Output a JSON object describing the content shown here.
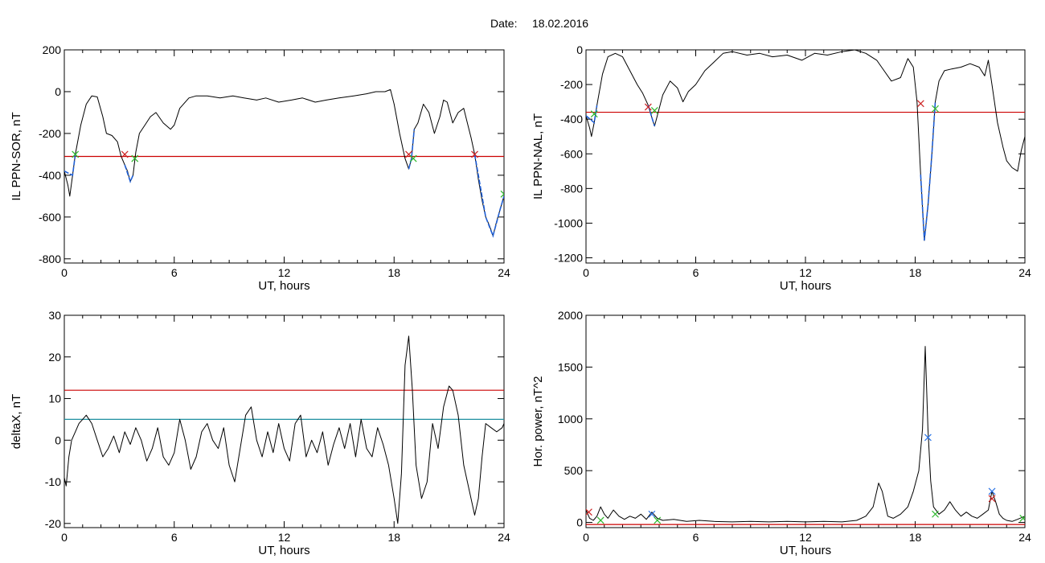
{
  "figure": {
    "date_label": "Date:",
    "date_value": "18.02.2016"
  },
  "colors": {
    "threshold_red": "#cc0000",
    "threshold_cyan": "#1e8fa0",
    "event_segment_blue": "#1f5fd6",
    "start_marker_red": "#cc2222",
    "end_marker_green": "#2bb82b",
    "peak_marker_blue": "#2a73e6"
  },
  "chart_data": [
    {
      "id": "il-sor",
      "type": "line",
      "xlabel": "UT, hours",
      "ylabel": "IL PPN-SOR, nT",
      "xlim": [
        0,
        24
      ],
      "ylim": [
        -820,
        200
      ],
      "xticks": [
        0,
        6,
        12,
        18,
        24
      ],
      "yticks": [
        200,
        0,
        -200,
        -400,
        -600,
        -800
      ],
      "grid": false,
      "threshold_lines": [
        {
          "y": -310,
          "color": "#cc0000"
        }
      ],
      "series": [
        {
          "x": [
            0,
            0.2,
            0.3,
            0.45,
            0.6,
            0.9,
            1.2,
            1.5,
            1.8,
            2.1,
            2.3,
            2.6,
            2.9,
            3.1,
            3.3,
            3.45,
            3.6,
            3.75,
            3.9,
            4.1,
            4.4,
            4.7,
            5.0,
            5.4,
            5.8,
            6.0,
            6.3,
            6.8,
            7.2,
            7.8,
            8.5,
            9.2,
            9.8,
            10.5,
            11.0,
            11.7,
            12.4,
            13.0,
            13.7,
            14.3,
            15.0,
            15.8,
            16.5,
            17.0,
            17.5,
            17.8,
            18.0,
            18.3,
            18.6,
            18.8,
            18.95,
            19.1,
            19.3,
            19.6,
            19.9,
            20.2,
            20.5,
            20.7,
            20.9,
            21.2,
            21.5,
            21.8,
            22.0,
            22.2,
            22.4,
            22.6,
            22.8,
            23.0,
            23.2,
            23.4,
            23.6,
            23.8,
            24.0
          ],
          "y": [
            -380,
            -450,
            -500,
            -400,
            -300,
            -160,
            -60,
            -20,
            -25,
            -120,
            -200,
            -210,
            -240,
            -310,
            -350,
            -380,
            -430,
            -400,
            -290,
            -200,
            -160,
            -120,
            -100,
            -150,
            -180,
            -160,
            -80,
            -30,
            -20,
            -20,
            -30,
            -20,
            -30,
            -40,
            -30,
            -50,
            -40,
            -30,
            -50,
            -40,
            -30,
            -20,
            -10,
            0,
            0,
            10,
            -60,
            -200,
            -320,
            -370,
            -320,
            -180,
            -150,
            -60,
            -100,
            -200,
            -120,
            -40,
            -50,
            -150,
            -100,
            -80,
            -150,
            -220,
            -300,
            -420,
            -520,
            -600,
            -640,
            -690,
            -620,
            -560,
            -500
          ]
        }
      ],
      "event_segments": [
        {
          "x": [
            0,
            0.45,
            0.6
          ]
        },
        {
          "x": [
            3.3,
            3.6,
            3.75
          ]
        },
        {
          "x": [
            18.8,
            18.95,
            19.1
          ]
        },
        {
          "x": [
            22.4,
            23.0,
            23.4,
            23.8,
            24.0
          ]
        }
      ],
      "markers": [
        {
          "x": 0.6,
          "y": -300,
          "kind": "end"
        },
        {
          "x": 3.3,
          "y": -300,
          "kind": "start"
        },
        {
          "x": 3.85,
          "y": -320,
          "kind": "end"
        },
        {
          "x": 18.8,
          "y": -300,
          "kind": "start"
        },
        {
          "x": 19.05,
          "y": -320,
          "kind": "end"
        },
        {
          "x": 22.4,
          "y": -300,
          "kind": "start"
        },
        {
          "x": 24.0,
          "y": -490,
          "kind": "end"
        }
      ]
    },
    {
      "id": "il-nal",
      "type": "line",
      "xlabel": "UT, hours",
      "ylabel": "IL PPN-NAL, nT",
      "xlim": [
        0,
        24
      ],
      "ylim": [
        -1230,
        0
      ],
      "xticks": [
        0,
        6,
        12,
        18,
        24
      ],
      "yticks": [
        0,
        -200,
        -400,
        -600,
        -800,
        -1000,
        -1200
      ],
      "grid": false,
      "threshold_lines": [
        {
          "y": -360,
          "color": "#cc0000"
        }
      ],
      "series": [
        {
          "x": [
            0,
            0.2,
            0.3,
            0.45,
            0.6,
            0.9,
            1.2,
            1.6,
            2.0,
            2.4,
            2.8,
            3.1,
            3.4,
            3.6,
            3.75,
            3.9,
            4.2,
            4.6,
            5.0,
            5.3,
            5.6,
            6.0,
            6.5,
            7.0,
            7.5,
            8.0,
            8.8,
            9.5,
            10.2,
            11.0,
            11.8,
            12.5,
            13.2,
            14.0,
            14.7,
            15.3,
            15.9,
            16.3,
            16.7,
            17.2,
            17.6,
            17.9,
            18.1,
            18.3,
            18.5,
            18.7,
            18.9,
            19.1,
            19.3,
            19.6,
            20.0,
            20.5,
            21.0,
            21.5,
            21.8,
            22.0,
            22.2,
            22.5,
            22.8,
            23.0,
            23.3,
            23.6,
            23.8,
            24.0
          ],
          "y": [
            -380,
            -450,
            -500,
            -420,
            -320,
            -140,
            -40,
            -20,
            -40,
            -120,
            -200,
            -250,
            -320,
            -390,
            -440,
            -380,
            -260,
            -180,
            -220,
            -300,
            -240,
            -200,
            -120,
            -70,
            -20,
            -10,
            -30,
            -20,
            -40,
            -30,
            -60,
            -20,
            -30,
            -10,
            0,
            -20,
            -60,
            -120,
            -180,
            -160,
            -50,
            -100,
            -300,
            -720,
            -1100,
            -900,
            -620,
            -300,
            -180,
            -120,
            -110,
            -100,
            -80,
            -100,
            -150,
            -60,
            -200,
            -420,
            -560,
            -640,
            -680,
            -700,
            -580,
            -500
          ]
        }
      ],
      "event_segments": [
        {
          "x": [
            0,
            0.45,
            0.6
          ]
        },
        {
          "x": [
            3.4,
            3.6,
            3.75
          ]
        },
        {
          "x": [
            18.3,
            18.5,
            18.7,
            18.9,
            19.1
          ]
        }
      ],
      "markers": [
        {
          "x": 0.45,
          "y": -370,
          "kind": "end"
        },
        {
          "x": 3.4,
          "y": -330,
          "kind": "start"
        },
        {
          "x": 3.75,
          "y": -350,
          "kind": "end"
        },
        {
          "x": 18.3,
          "y": -310,
          "kind": "start"
        },
        {
          "x": 19.1,
          "y": -340,
          "kind": "end"
        }
      ]
    },
    {
      "id": "deltax",
      "type": "line",
      "xlabel": "UT, hours",
      "ylabel": "deltaX, nT",
      "xlim": [
        0,
        24
      ],
      "ylim": [
        -21,
        30
      ],
      "xticks": [
        0,
        6,
        12,
        18,
        24
      ],
      "yticks": [
        30,
        20,
        10,
        0,
        -10,
        -20
      ],
      "grid": false,
      "threshold_lines": [
        {
          "y": 12,
          "color": "#cc0000"
        },
        {
          "y": 5,
          "color": "#1e8fa0"
        }
      ],
      "series": [
        {
          "x": [
            0,
            0.1,
            0.25,
            0.4,
            0.6,
            0.8,
            1.0,
            1.2,
            1.5,
            1.8,
            2.1,
            2.4,
            2.7,
            3.0,
            3.3,
            3.6,
            3.9,
            4.2,
            4.5,
            4.8,
            5.1,
            5.4,
            5.7,
            6.0,
            6.3,
            6.6,
            6.9,
            7.2,
            7.5,
            7.8,
            8.1,
            8.4,
            8.7,
            9.0,
            9.3,
            9.6,
            9.9,
            10.2,
            10.5,
            10.8,
            11.1,
            11.4,
            11.7,
            12.0,
            12.3,
            12.6,
            12.9,
            13.2,
            13.5,
            13.8,
            14.1,
            14.4,
            14.7,
            15.0,
            15.3,
            15.6,
            15.9,
            16.2,
            16.5,
            16.8,
            17.1,
            17.4,
            17.7,
            18.0,
            18.2,
            18.4,
            18.6,
            18.8,
            19.0,
            19.2,
            19.5,
            19.8,
            20.1,
            20.4,
            20.7,
            21.0,
            21.2,
            21.5,
            21.8,
            22.1,
            22.4,
            22.6,
            22.8,
            23.0,
            23.3,
            23.6,
            23.9,
            24.0
          ],
          "y": [
            -9,
            -11,
            -4,
            0,
            2,
            4,
            5,
            6,
            4,
            0,
            -4,
            -2,
            1,
            -3,
            2,
            -1,
            3,
            0,
            -5,
            -2,
            3,
            -4,
            -6,
            -3,
            5,
            0,
            -7,
            -4,
            2,
            4,
            0,
            -2,
            3,
            -6,
            -10,
            -2,
            6,
            8,
            0,
            -4,
            2,
            -3,
            4,
            -2,
            -5,
            4,
            6,
            -4,
            0,
            -3,
            2,
            -6,
            -1,
            3,
            -2,
            4,
            -4,
            5,
            -2,
            -4,
            3,
            -1,
            -6,
            -14,
            -20,
            -8,
            18,
            25,
            12,
            -6,
            -14,
            -10,
            4,
            -2,
            8,
            13,
            12,
            6,
            -6,
            -12,
            -18,
            -14,
            -4,
            4,
            3,
            2,
            3,
            4
          ]
        }
      ]
    },
    {
      "id": "hor-power",
      "type": "line",
      "xlabel": "UT, hours",
      "ylabel": "Hor. power, nT^2",
      "xlim": [
        0,
        24
      ],
      "ylim": [
        -50,
        2000
      ],
      "xticks": [
        0,
        6,
        12,
        18,
        24
      ],
      "yticks": [
        2000,
        1500,
        1000,
        500,
        0
      ],
      "grid": false,
      "threshold_lines": [
        {
          "y": -20,
          "color": "#cc0000"
        }
      ],
      "series": [
        {
          "x": [
            0,
            0.2,
            0.4,
            0.6,
            0.8,
            1.0,
            1.2,
            1.5,
            1.8,
            2.1,
            2.4,
            2.7,
            3.0,
            3.3,
            3.6,
            3.9,
            4.2,
            4.8,
            5.5,
            6.2,
            7.0,
            8.0,
            9.0,
            10.0,
            11.0,
            12.0,
            13.0,
            14.0,
            14.8,
            15.3,
            15.7,
            16.0,
            16.2,
            16.5,
            16.8,
            17.2,
            17.6,
            17.9,
            18.2,
            18.4,
            18.55,
            18.7,
            18.85,
            19.0,
            19.3,
            19.6,
            19.9,
            20.2,
            20.5,
            20.8,
            21.1,
            21.4,
            21.7,
            22.0,
            22.2,
            22.4,
            22.6,
            22.8,
            23.0,
            23.3,
            23.6,
            24.0
          ],
          "y": [
            120,
            40,
            20,
            60,
            150,
            80,
            40,
            120,
            60,
            30,
            60,
            40,
            80,
            30,
            100,
            40,
            20,
            30,
            10,
            20,
            10,
            5,
            10,
            5,
            10,
            5,
            10,
            5,
            20,
            60,
            150,
            380,
            300,
            60,
            40,
            80,
            150,
            300,
            500,
            900,
            1700,
            900,
            400,
            150,
            80,
            120,
            200,
            120,
            60,
            100,
            60,
            40,
            80,
            120,
            300,
            200,
            80,
            40,
            20,
            10,
            30,
            60
          ]
        }
      ],
      "markers": [
        {
          "x": 0.15,
          "y": 100,
          "kind": "start"
        },
        {
          "x": 0.8,
          "y": 20,
          "kind": "end"
        },
        {
          "x": 3.6,
          "y": 80,
          "kind": "peak"
        },
        {
          "x": 3.9,
          "y": 20,
          "kind": "end"
        },
        {
          "x": 18.7,
          "y": 820,
          "kind": "peak"
        },
        {
          "x": 19.1,
          "y": 80,
          "kind": "end"
        },
        {
          "x": 22.2,
          "y": 300,
          "kind": "peak"
        },
        {
          "x": 22.2,
          "y": 230,
          "kind": "start"
        },
        {
          "x": 23.9,
          "y": 40,
          "kind": "end"
        }
      ]
    }
  ]
}
